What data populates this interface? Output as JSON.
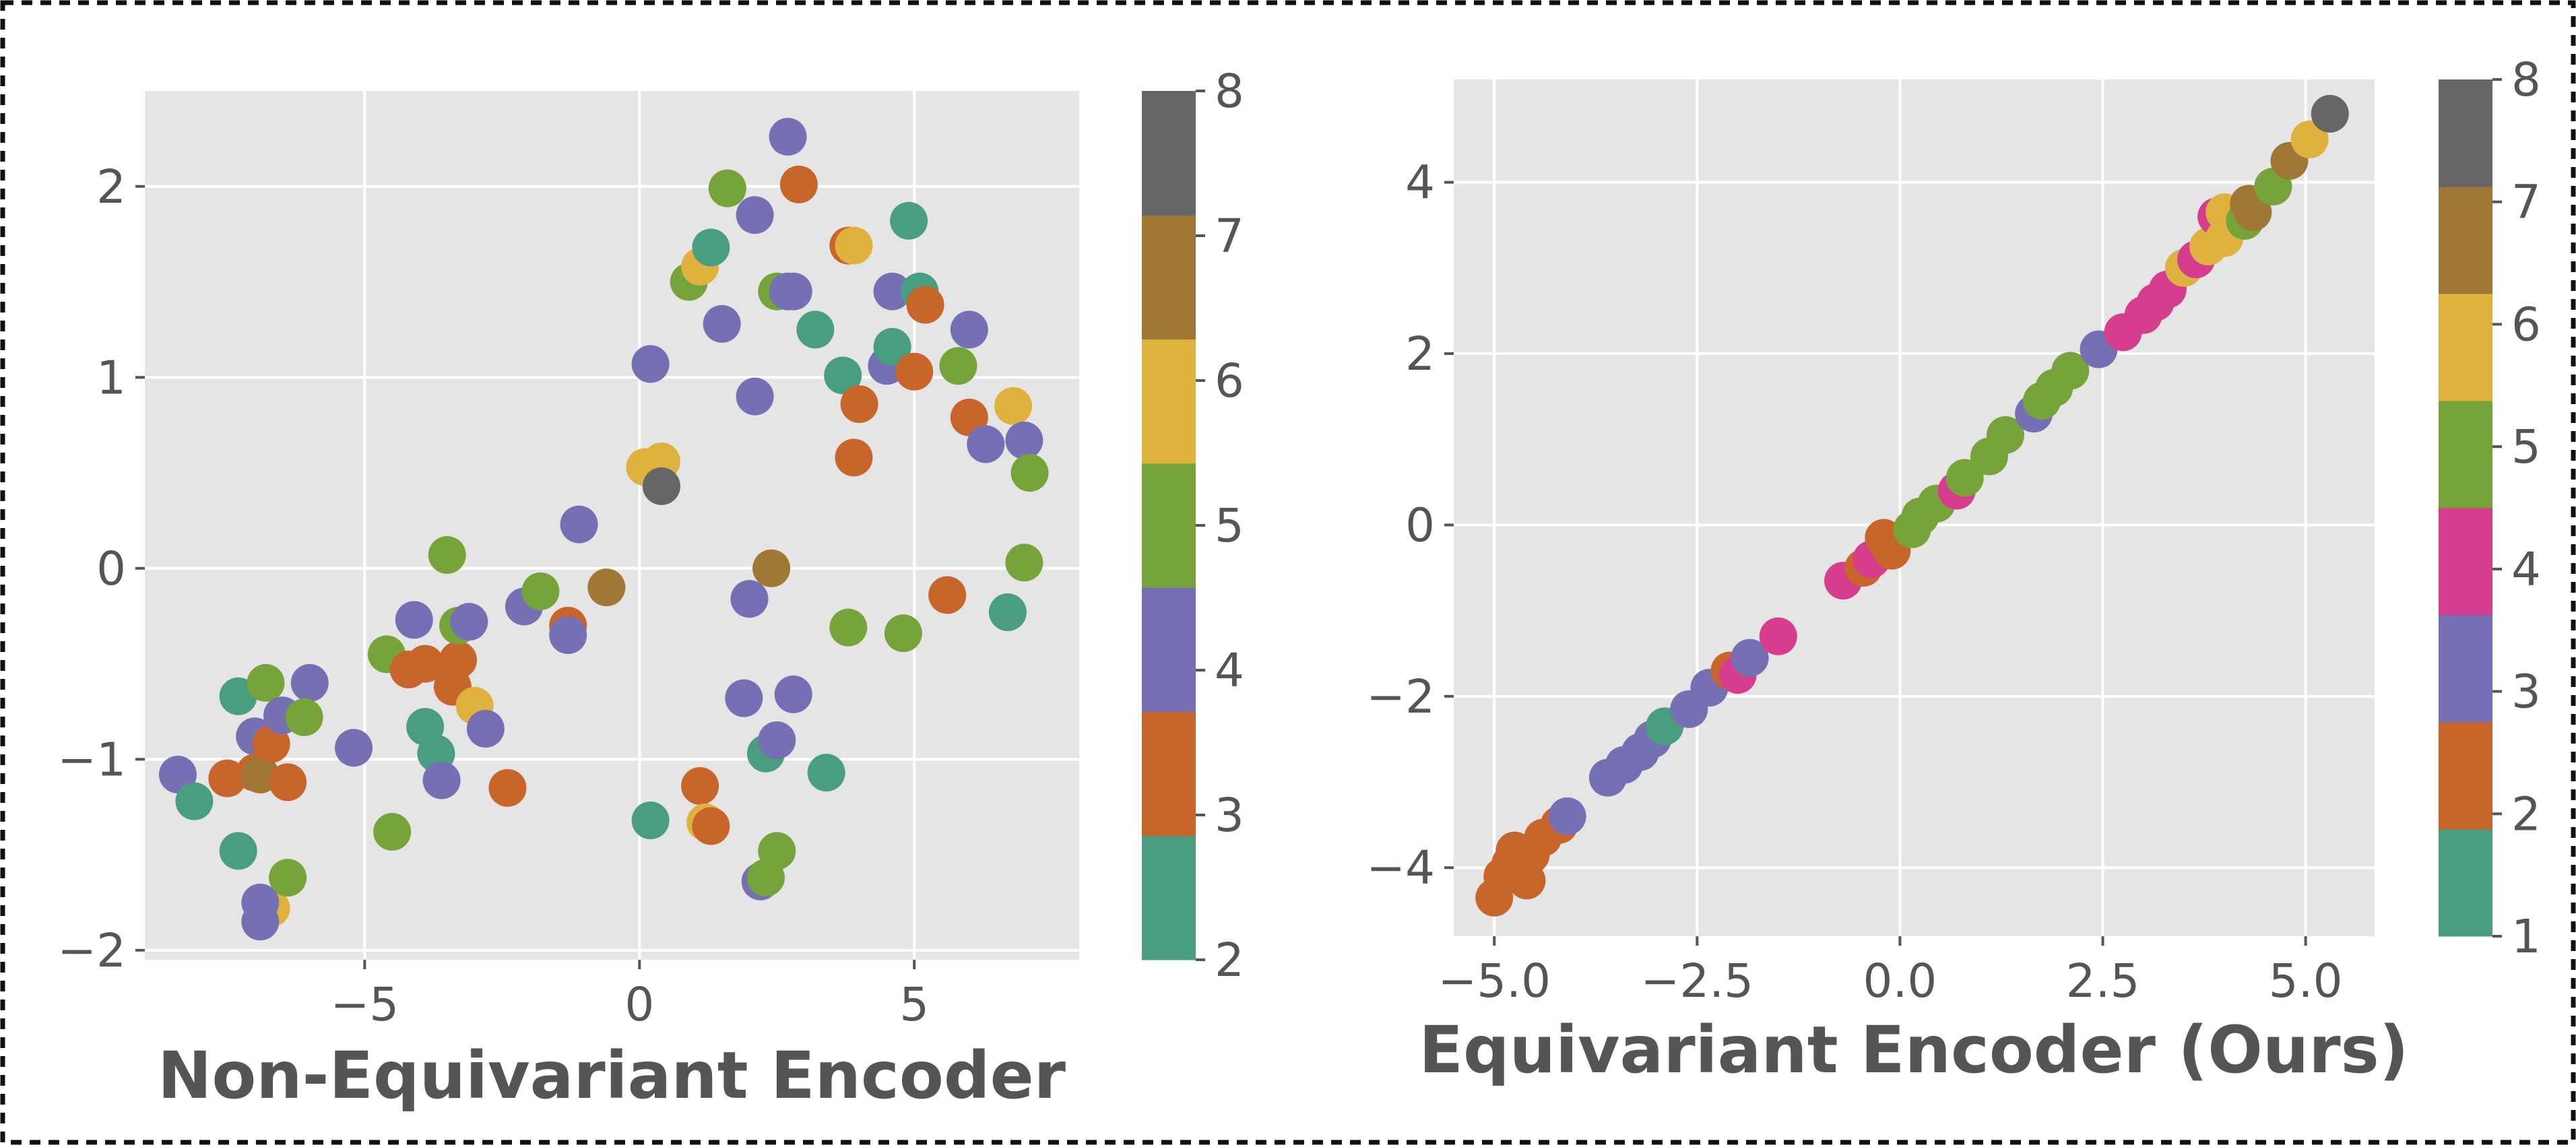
{
  "chart_data": [
    {
      "type": "scatter",
      "title": "",
      "xlabel": "Non-Equivariant Encoder",
      "ylabel": "",
      "xlim": [
        -9.0,
        8.0
      ],
      "ylim": [
        -2.05,
        2.5
      ],
      "xticks": [
        -5,
        0,
        5
      ],
      "xtick_labels": [
        "−5",
        "0",
        "5"
      ],
      "yticks": [
        -2,
        -1,
        0,
        1,
        2
      ],
      "ytick_labels": [
        "−2",
        "−1",
        "0",
        "1",
        "2"
      ],
      "grid": true,
      "background": "#e5e5e5",
      "colorbar": {
        "colormap": "Dark2",
        "range": [
          2,
          8
        ],
        "ticks": [
          2,
          3,
          4,
          5,
          6,
          7,
          8
        ],
        "tick_labels": [
          "2",
          "3",
          "4",
          "5",
          "6",
          "7",
          "8"
        ],
        "colors": [
          "#4a9e80",
          "#c8652a",
          "#7570b3",
          "#76a43a",
          "#dfb13f",
          "#a07836",
          "#666666"
        ]
      },
      "points": [
        {
          "x": -8.4,
          "y": -1.08,
          "c": 4
        },
        {
          "x": -8.1,
          "y": -1.22,
          "c": 2
        },
        {
          "x": -7.5,
          "y": -1.1,
          "c": 3
        },
        {
          "x": -7.3,
          "y": -1.48,
          "c": 2
        },
        {
          "x": -7.3,
          "y": -0.67,
          "c": 2
        },
        {
          "x": -7.0,
          "y": -0.88,
          "c": 4
        },
        {
          "x": -7.0,
          "y": -1.07,
          "c": 3
        },
        {
          "x": -6.9,
          "y": -1.08,
          "c": 7
        },
        {
          "x": -6.8,
          "y": -0.6,
          "c": 5
        },
        {
          "x": -6.7,
          "y": -1.78,
          "c": 6
        },
        {
          "x": -6.9,
          "y": -1.75,
          "c": 4
        },
        {
          "x": -6.9,
          "y": -1.85,
          "c": 4
        },
        {
          "x": -6.7,
          "y": -0.92,
          "c": 3
        },
        {
          "x": -6.5,
          "y": -0.77,
          "c": 4
        },
        {
          "x": -6.4,
          "y": -1.12,
          "c": 3
        },
        {
          "x": -6.4,
          "y": -1.62,
          "c": 5
        },
        {
          "x": -6.0,
          "y": -0.6,
          "c": 4
        },
        {
          "x": -6.1,
          "y": -0.78,
          "c": 5
        },
        {
          "x": -5.2,
          "y": -0.94,
          "c": 4
        },
        {
          "x": -4.6,
          "y": -0.45,
          "c": 5
        },
        {
          "x": -4.5,
          "y": -1.38,
          "c": 5
        },
        {
          "x": -4.2,
          "y": -0.53,
          "c": 3
        },
        {
          "x": -4.1,
          "y": -0.27,
          "c": 4
        },
        {
          "x": -3.9,
          "y": -0.83,
          "c": 2
        },
        {
          "x": -3.9,
          "y": -0.5,
          "c": 3
        },
        {
          "x": -3.7,
          "y": -0.97,
          "c": 2
        },
        {
          "x": -3.6,
          "y": -1.11,
          "c": 4
        },
        {
          "x": -3.5,
          "y": 0.07,
          "c": 5
        },
        {
          "x": -3.4,
          "y": -0.62,
          "c": 3
        },
        {
          "x": -3.3,
          "y": -0.48,
          "c": 3
        },
        {
          "x": -3.3,
          "y": -0.3,
          "c": 5
        },
        {
          "x": -3.1,
          "y": -0.28,
          "c": 4
        },
        {
          "x": -3.0,
          "y": -0.72,
          "c": 6
        },
        {
          "x": -2.8,
          "y": -0.84,
          "c": 4
        },
        {
          "x": -2.4,
          "y": -1.15,
          "c": 3
        },
        {
          "x": -2.1,
          "y": -0.2,
          "c": 4
        },
        {
          "x": -1.8,
          "y": -0.12,
          "c": 5
        },
        {
          "x": -1.3,
          "y": -0.3,
          "c": 3
        },
        {
          "x": -1.3,
          "y": -0.35,
          "c": 4
        },
        {
          "x": -1.1,
          "y": 0.23,
          "c": 4
        },
        {
          "x": -0.6,
          "y": -0.1,
          "c": 7
        },
        {
          "x": 0.1,
          "y": 0.53,
          "c": 6
        },
        {
          "x": 0.2,
          "y": -1.32,
          "c": 2
        },
        {
          "x": 0.2,
          "y": 1.07,
          "c": 4
        },
        {
          "x": 0.4,
          "y": 0.56,
          "c": 6
        },
        {
          "x": 0.4,
          "y": 0.43,
          "c": 8
        },
        {
          "x": 0.9,
          "y": 1.5,
          "c": 5
        },
        {
          "x": 1.1,
          "y": 1.58,
          "c": 6
        },
        {
          "x": 1.1,
          "y": -1.14,
          "c": 3
        },
        {
          "x": 1.2,
          "y": -1.33,
          "c": 6
        },
        {
          "x": 1.3,
          "y": -1.35,
          "c": 3
        },
        {
          "x": 1.3,
          "y": 1.68,
          "c": 2
        },
        {
          "x": 1.5,
          "y": 1.28,
          "c": 4
        },
        {
          "x": 1.6,
          "y": 1.99,
          "c": 5
        },
        {
          "x": 1.9,
          "y": -0.68,
          "c": 4
        },
        {
          "x": 2.0,
          "y": -0.16,
          "c": 4
        },
        {
          "x": 2.1,
          "y": 1.85,
          "c": 4
        },
        {
          "x": 2.1,
          "y": 0.9,
          "c": 4
        },
        {
          "x": 2.2,
          "y": -1.64,
          "c": 4
        },
        {
          "x": 2.3,
          "y": -1.62,
          "c": 5
        },
        {
          "x": 2.3,
          "y": -0.97,
          "c": 2
        },
        {
          "x": 2.5,
          "y": 1.45,
          "c": 5
        },
        {
          "x": 2.5,
          "y": -0.9,
          "c": 4
        },
        {
          "x": 2.5,
          "y": -1.48,
          "c": 5
        },
        {
          "x": 2.4,
          "y": 0.0,
          "c": 7
        },
        {
          "x": 2.7,
          "y": 1.45,
          "c": 4
        },
        {
          "x": 2.7,
          "y": 2.26,
          "c": 4
        },
        {
          "x": 2.8,
          "y": 1.45,
          "c": 4
        },
        {
          "x": 2.8,
          "y": -0.66,
          "c": 4
        },
        {
          "x": 2.9,
          "y": 2.01,
          "c": 3
        },
        {
          "x": 3.2,
          "y": 1.25,
          "c": 2
        },
        {
          "x": 3.4,
          "y": -1.07,
          "c": 2
        },
        {
          "x": 3.7,
          "y": 1.01,
          "c": 2
        },
        {
          "x": 3.8,
          "y": -0.31,
          "c": 5
        },
        {
          "x": 3.8,
          "y": 1.69,
          "c": 3
        },
        {
          "x": 3.9,
          "y": 1.69,
          "c": 6
        },
        {
          "x": 3.9,
          "y": 0.58,
          "c": 3
        },
        {
          "x": 4.0,
          "y": 0.86,
          "c": 3
        },
        {
          "x": 4.5,
          "y": 1.06,
          "c": 4
        },
        {
          "x": 4.6,
          "y": 1.16,
          "c": 2
        },
        {
          "x": 4.6,
          "y": 1.45,
          "c": 4
        },
        {
          "x": 4.8,
          "y": -0.34,
          "c": 5
        },
        {
          "x": 4.9,
          "y": 1.82,
          "c": 2
        },
        {
          "x": 5.0,
          "y": 1.03,
          "c": 3
        },
        {
          "x": 5.1,
          "y": 1.45,
          "c": 2
        },
        {
          "x": 5.2,
          "y": 1.38,
          "c": 3
        },
        {
          "x": 5.6,
          "y": -0.14,
          "c": 3
        },
        {
          "x": 5.8,
          "y": 1.06,
          "c": 5
        },
        {
          "x": 6.0,
          "y": 1.25,
          "c": 4
        },
        {
          "x": 6.0,
          "y": 0.79,
          "c": 3
        },
        {
          "x": 6.3,
          "y": 0.65,
          "c": 4
        },
        {
          "x": 6.7,
          "y": -0.23,
          "c": 2
        },
        {
          "x": 6.8,
          "y": 0.85,
          "c": 6
        },
        {
          "x": 7.0,
          "y": 0.67,
          "c": 4
        },
        {
          "x": 7.0,
          "y": 0.03,
          "c": 5
        },
        {
          "x": 7.1,
          "y": 0.5,
          "c": 5
        }
      ]
    },
    {
      "type": "scatter",
      "title": "",
      "xlabel": "Equivariant Encoder (Ours)",
      "ylabel": "",
      "xlim": [
        -5.5,
        5.85
      ],
      "ylim": [
        -4.8,
        5.2
      ],
      "xticks": [
        -5.0,
        -2.5,
        0.0,
        2.5,
        5.0
      ],
      "xtick_labels": [
        "−5.0",
        "−2.5",
        "0.0",
        "2.5",
        "5.0"
      ],
      "yticks": [
        -4,
        -2,
        0,
        2,
        4
      ],
      "ytick_labels": [
        "−4",
        "−2",
        "0",
        "2",
        "4"
      ],
      "grid": true,
      "background": "#e5e5e5",
      "colorbar": {
        "colormap": "Dark2",
        "range": [
          1,
          8
        ],
        "ticks": [
          1,
          2,
          3,
          4,
          5,
          6,
          7,
          8
        ],
        "tick_labels": [
          "1",
          "2",
          "3",
          "4",
          "5",
          "6",
          "7",
          "8"
        ],
        "colors": [
          "#4a9e80",
          "#c8652a",
          "#7570b3",
          "#d63d8c",
          "#76a43a",
          "#dfb13f",
          "#a07836",
          "#666666"
        ]
      },
      "points": [
        {
          "x": -5.0,
          "y": -4.35,
          "c": 2
        },
        {
          "x": -4.9,
          "y": -4.1,
          "c": 2
        },
        {
          "x": -4.8,
          "y": -3.95,
          "c": 2
        },
        {
          "x": -4.75,
          "y": -3.8,
          "c": 2
        },
        {
          "x": -4.6,
          "y": -4.15,
          "c": 2
        },
        {
          "x": -4.55,
          "y": -3.85,
          "c": 2
        },
        {
          "x": -4.4,
          "y": -3.65,
          "c": 2
        },
        {
          "x": -4.2,
          "y": -3.5,
          "c": 2
        },
        {
          "x": -4.1,
          "y": -3.4,
          "c": 3
        },
        {
          "x": -3.6,
          "y": -2.95,
          "c": 3
        },
        {
          "x": -3.4,
          "y": -2.8,
          "c": 3
        },
        {
          "x": -3.2,
          "y": -2.65,
          "c": 3
        },
        {
          "x": -3.05,
          "y": -2.5,
          "c": 3
        },
        {
          "x": -2.9,
          "y": -2.35,
          "c": 1
        },
        {
          "x": -2.6,
          "y": -2.15,
          "c": 3
        },
        {
          "x": -2.35,
          "y": -1.9,
          "c": 3
        },
        {
          "x": -2.1,
          "y": -1.7,
          "c": 2
        },
        {
          "x": -2.0,
          "y": -1.75,
          "c": 4
        },
        {
          "x": -1.85,
          "y": -1.55,
          "c": 3
        },
        {
          "x": -1.5,
          "y": -1.3,
          "c": 4
        },
        {
          "x": -0.7,
          "y": -0.65,
          "c": 4
        },
        {
          "x": -0.45,
          "y": -0.5,
          "c": 2
        },
        {
          "x": -0.35,
          "y": -0.4,
          "c": 4
        },
        {
          "x": -0.2,
          "y": -0.15,
          "c": 2
        },
        {
          "x": -0.1,
          "y": -0.3,
          "c": 2
        },
        {
          "x": 0.15,
          "y": -0.05,
          "c": 5
        },
        {
          "x": 0.25,
          "y": 0.1,
          "c": 5
        },
        {
          "x": 0.45,
          "y": 0.25,
          "c": 5
        },
        {
          "x": 0.7,
          "y": 0.4,
          "c": 4
        },
        {
          "x": 0.8,
          "y": 0.55,
          "c": 5
        },
        {
          "x": 1.1,
          "y": 0.8,
          "c": 5
        },
        {
          "x": 1.3,
          "y": 1.05,
          "c": 5
        },
        {
          "x": 1.65,
          "y": 1.3,
          "c": 3
        },
        {
          "x": 1.75,
          "y": 1.45,
          "c": 5
        },
        {
          "x": 1.9,
          "y": 1.6,
          "c": 5
        },
        {
          "x": 2.1,
          "y": 1.8,
          "c": 5
        },
        {
          "x": 2.45,
          "y": 2.05,
          "c": 3
        },
        {
          "x": 2.75,
          "y": 2.25,
          "c": 4
        },
        {
          "x": 3.0,
          "y": 2.45,
          "c": 4
        },
        {
          "x": 3.15,
          "y": 2.6,
          "c": 4
        },
        {
          "x": 3.3,
          "y": 2.75,
          "c": 4
        },
        {
          "x": 3.5,
          "y": 3.0,
          "c": 6
        },
        {
          "x": 3.65,
          "y": 3.1,
          "c": 4
        },
        {
          "x": 3.8,
          "y": 3.25,
          "c": 6
        },
        {
          "x": 3.9,
          "y": 3.6,
          "c": 4
        },
        {
          "x": 4.0,
          "y": 3.65,
          "c": 6
        },
        {
          "x": 4.0,
          "y": 3.35,
          "c": 6
        },
        {
          "x": 4.25,
          "y": 3.55,
          "c": 5
        },
        {
          "x": 4.3,
          "y": 3.75,
          "c": 7
        },
        {
          "x": 4.35,
          "y": 3.65,
          "c": 7
        },
        {
          "x": 4.6,
          "y": 3.95,
          "c": 5
        },
        {
          "x": 4.8,
          "y": 4.25,
          "c": 7
        },
        {
          "x": 5.05,
          "y": 4.5,
          "c": 6
        },
        {
          "x": 5.3,
          "y": 4.8,
          "c": 8
        }
      ]
    }
  ]
}
